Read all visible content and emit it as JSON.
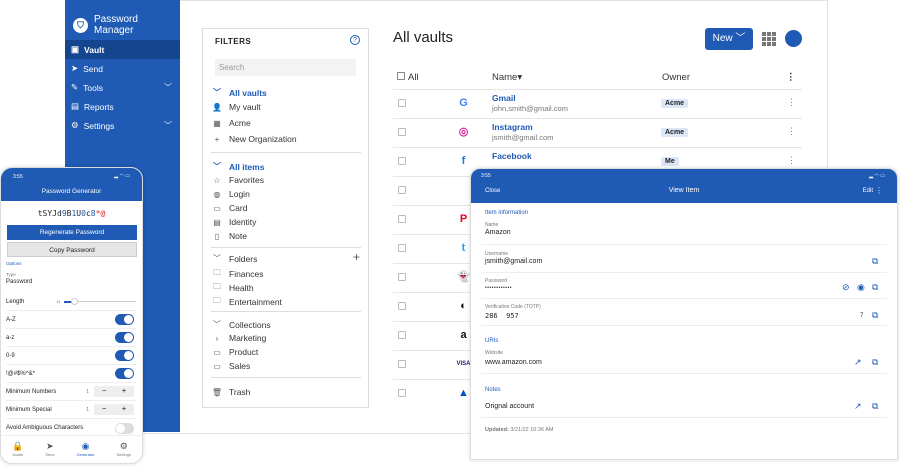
{
  "app": {
    "title": "Password Manager"
  },
  "sidebar": {
    "items": [
      {
        "label": "Vault",
        "icon": "vault-icon"
      },
      {
        "label": "Send",
        "icon": "send-icon"
      },
      {
        "label": "Tools",
        "icon": "tools-icon"
      },
      {
        "label": "Reports",
        "icon": "reports-icon"
      },
      {
        "label": "Settings",
        "icon": "gear-icon"
      }
    ]
  },
  "filters": {
    "title": "FILTERS",
    "search_placeholder": "Search",
    "vaults": [
      "All vaults",
      "My vault",
      "Acme",
      "New Organization"
    ],
    "items": [
      "All items",
      "Favorites",
      "Login",
      "Card",
      "Identity",
      "Note"
    ],
    "folders": [
      "Folders",
      "Finances",
      "Health",
      "Entertainment"
    ],
    "collections": [
      "Collections",
      "Marketing",
      "Product",
      "Sales"
    ],
    "trash": "Trash"
  },
  "main": {
    "title": "All vaults",
    "new_label": "New",
    "columns": {
      "all": "All",
      "name": "Name",
      "owner": "Owner"
    },
    "rows": [
      {
        "name": "Gmail",
        "email": "john.smith@gmail.com",
        "owner": "Acme",
        "icon": "G",
        "color": "#4285f4"
      },
      {
        "name": "Instagram",
        "email": "jsmith@gmail.com",
        "owner": "Acme",
        "icon": "◎",
        "color": "#d6249f"
      },
      {
        "name": "Facebook",
        "email": "",
        "owner": "Me",
        "icon": "f",
        "color": "#1877f2"
      },
      {
        "icon": "",
        "color": "#111"
      },
      {
        "icon": "P",
        "color": "#e60023"
      },
      {
        "icon": "t",
        "color": "#1da1f2"
      },
      {
        "icon": "👻",
        "color": "#fffc00"
      },
      {
        "icon": "◐",
        "color": "#111"
      },
      {
        "icon": "a",
        "color": "#111"
      },
      {
        "icon": "VISA",
        "color": "#1a1f71"
      },
      {
        "icon": "▲",
        "color": "#0052cc"
      }
    ]
  },
  "phone": {
    "time": "3:55",
    "title": "Password Generator",
    "password": "tSYJd9B1U0c8*@",
    "regenerate": "Regenerate Password",
    "copy": "Copy Password",
    "options": "Options",
    "type_label": "Type",
    "type_value": "Password",
    "length_label": "Length",
    "length_value": "14",
    "toggles": [
      {
        "label": "A-Z",
        "on": true
      },
      {
        "label": "a-z",
        "on": true
      },
      {
        "label": "0-9",
        "on": true
      },
      {
        "label": "!@#$%^&*",
        "on": true
      }
    ],
    "min_numbers": {
      "label": "Minimum Numbers",
      "value": "1"
    },
    "min_special": {
      "label": "Minimum Special",
      "value": "1"
    },
    "avoid": {
      "label": "Avoid Ambiguous Characters",
      "on": false
    },
    "tabs": [
      "Vaults",
      "Send",
      "Generator",
      "Settings"
    ]
  },
  "tablet": {
    "time": "3:55",
    "close": "Close",
    "title": "View Item",
    "edit": "Edit",
    "item_info": "Item information",
    "name_label": "Name",
    "name": "Amazon",
    "username_label": "Username",
    "username": "jsmith@gmail.com",
    "password_label": "Password",
    "password": "••••••••••••",
    "totp_label": "Verification Code (TOTP)",
    "totp": "286  957",
    "totp_seconds": "7",
    "uris": "URIs",
    "website_label": "Website",
    "website": "www.amazon.com",
    "notes": "Notes",
    "note": "Orignal account",
    "updated_label": "Updated:",
    "updated": "3/21/22 10:36 AM"
  },
  "colors": {
    "brand": "#1f5ab5"
  }
}
